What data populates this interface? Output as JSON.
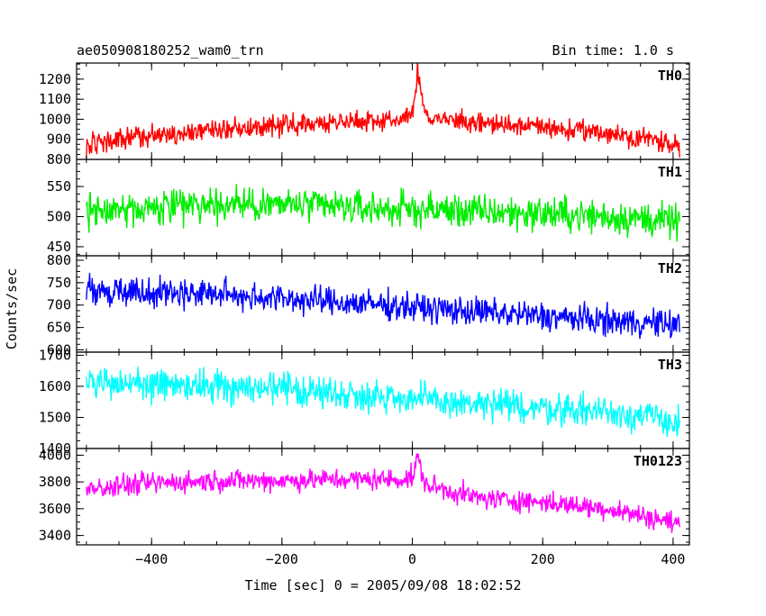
{
  "header": {
    "title": "ae050908180252_wam0_trn",
    "bin_time": "Bin time: 1.0 s"
  },
  "chart_data": {
    "type": "line",
    "x_label": "Time [sec] 0 = 2005/09/08 18:02:52",
    "y_label": "Counts/sec",
    "x_range": [
      -515,
      425
    ],
    "x_ticks": [
      -400,
      -200,
      0,
      200,
      400
    ],
    "x_tick_labels": [
      "−400",
      "−200",
      "0",
      "200",
      "400"
    ],
    "series_anchor_x": [
      -500,
      -400,
      -300,
      -200,
      -100,
      -20,
      0,
      8,
      20,
      100,
      200,
      300,
      370,
      410
    ],
    "panels": [
      {
        "name": "TH0",
        "color": "#ff0000",
        "y_range": [
          800,
          1280
        ],
        "y_ticks": [
          800,
          900,
          1000,
          1100,
          1200
        ],
        "y_tick_labels": [
          "800",
          "900",
          "1000",
          "1100",
          "1200"
        ],
        "profile": [
          870,
          920,
          950,
          970,
          990,
          1000,
          1020,
          1240,
          1010,
          980,
          960,
          930,
          900,
          870
        ],
        "noise": 45
      },
      {
        "name": "TH1",
        "color": "#00ee00",
        "y_range": [
          435,
          595
        ],
        "y_ticks": [
          450,
          500,
          550
        ],
        "y_tick_labels": [
          "450",
          "500",
          "550"
        ],
        "profile": [
          510,
          515,
          520,
          520,
          515,
          512,
          512,
          512,
          512,
          508,
          505,
          500,
          495,
          490
        ],
        "noise": 25
      },
      {
        "name": "TH2",
        "color": "#0000ff",
        "y_range": [
          595,
          810
        ],
        "y_ticks": [
          600,
          650,
          700,
          750,
          800
        ],
        "y_tick_labels": [
          "600",
          "650",
          "700",
          "750",
          "800"
        ],
        "profile": [
          735,
          730,
          725,
          715,
          705,
          698,
          695,
          695,
          693,
          685,
          675,
          665,
          660,
          655
        ],
        "noise": 28
      },
      {
        "name": "TH3",
        "color": "#00ffff",
        "y_range": [
          1400,
          1710
        ],
        "y_ticks": [
          1400,
          1500,
          1600,
          1700
        ],
        "y_tick_labels": [
          "1400",
          "1500",
          "1600",
          "1700"
        ],
        "profile": [
          1610,
          1605,
          1600,
          1590,
          1575,
          1565,
          1560,
          1560,
          1555,
          1540,
          1530,
          1520,
          1500,
          1480
        ],
        "noise": 45
      },
      {
        "name": "TH0123",
        "color": "#ff00ff",
        "y_range": [
          3330,
          4050
        ],
        "y_ticks": [
          3400,
          3600,
          3800,
          4000
        ],
        "y_tick_labels": [
          "3400",
          "3600",
          "3800",
          "4000"
        ],
        "profile": [
          3740,
          3790,
          3810,
          3810,
          3820,
          3820,
          3830,
          3980,
          3780,
          3680,
          3650,
          3600,
          3530,
          3490
        ],
        "noise": 70
      }
    ]
  }
}
